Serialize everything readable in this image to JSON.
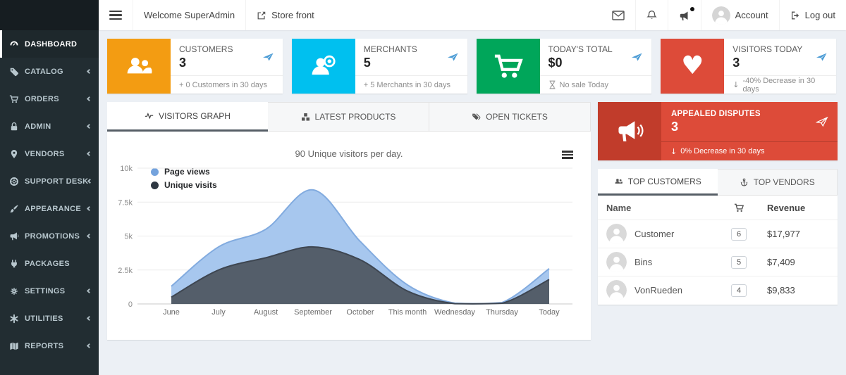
{
  "topbar": {
    "welcome": "Welcome SuperAdmin",
    "store_front": "Store front",
    "account_label": "Account",
    "logout_label": "Log out"
  },
  "sidebar": {
    "items": [
      {
        "label": "DASHBOARD",
        "icon": "gauge-icon",
        "active": true,
        "has_submenu": false
      },
      {
        "label": "CATALOG",
        "icon": "tag-icon",
        "active": false,
        "has_submenu": true
      },
      {
        "label": "ORDERS",
        "icon": "cart-icon",
        "active": false,
        "has_submenu": true
      },
      {
        "label": "ADMIN",
        "icon": "lock-icon",
        "active": false,
        "has_submenu": true
      },
      {
        "label": "VENDORS",
        "icon": "map-marker-icon",
        "active": false,
        "has_submenu": true
      },
      {
        "label": "SUPPORT DESK",
        "icon": "life-ring-icon",
        "active": false,
        "has_submenu": true
      },
      {
        "label": "APPEARANCE",
        "icon": "paintbrush-icon",
        "active": false,
        "has_submenu": true
      },
      {
        "label": "PROMOTIONS",
        "icon": "bullhorn-icon",
        "active": false,
        "has_submenu": true
      },
      {
        "label": "PACKAGES",
        "icon": "plug-icon",
        "active": false,
        "has_submenu": false
      },
      {
        "label": "SETTINGS",
        "icon": "gear-icon",
        "active": false,
        "has_submenu": true
      },
      {
        "label": "UTILITIES",
        "icon": "asterisk-icon",
        "active": false,
        "has_submenu": true
      },
      {
        "label": "REPORTS",
        "icon": "map-icon",
        "active": false,
        "has_submenu": true
      }
    ]
  },
  "stat_cards": [
    {
      "label": "CUSTOMERS",
      "value": "3",
      "footer": "+ 0 Customers in 30 days",
      "color": "#f39c12",
      "icon": "users-icon"
    },
    {
      "label": "MERCHANTS",
      "value": "5",
      "footer": "+ 5 Merchants in 30 days",
      "color": "#00c0ef",
      "icon": "merchant-users-icon"
    },
    {
      "label": "TODAY'S TOTAL",
      "value": "$0",
      "footer": "No sale Today",
      "color": "#00a65a",
      "icon": "shopping-cart-icon",
      "footer_icon": "hourglass-icon"
    },
    {
      "label": "VISITORS TODAY",
      "value": "3",
      "footer": "-40% Decrease in 30 days",
      "color": "#dd4b39",
      "icon": "heart-icon",
      "footer_icon": "down-arrow-icon",
      "down_arrow": "↓"
    }
  ],
  "main_tabs": [
    {
      "label": "VISITORS GRAPH",
      "icon": "pulse-icon",
      "active": true
    },
    {
      "label": "LATEST PRODUCTS",
      "icon": "cubes-icon",
      "active": false
    },
    {
      "label": "OPEN TICKETS",
      "icon": "tags-icon",
      "active": false
    }
  ],
  "chart_data": {
    "type": "area",
    "title": "90 Unique visitors per day.",
    "categories": [
      "June",
      "July",
      "August",
      "September",
      "October",
      "This month",
      "Wednesday",
      "Thursday",
      "Today"
    ],
    "series": [
      {
        "name": "Page views",
        "values": [
          1300,
          4200,
          5500,
          8400,
          4600,
          1400,
          60,
          100,
          2600
        ],
        "fill": "#a7c7ee",
        "stroke": "#82abdf",
        "dot": "#74a3dd"
      },
      {
        "name": "Unique visits",
        "values": [
          500,
          2500,
          3400,
          4200,
          3250,
          950,
          20,
          50,
          1800
        ],
        "fill": "#545e6a",
        "stroke": "#3e4651",
        "dot": "#2e3742"
      }
    ],
    "y_ticks": [
      "0",
      "2.5k",
      "5k",
      "7.5k",
      "10k"
    ],
    "y_tick_values": [
      0,
      2500,
      5000,
      7500,
      10000
    ],
    "ylim": [
      0,
      10000
    ],
    "grid": true,
    "legend_position": "top-left"
  },
  "disputes_card": {
    "label": "APPEALED DISPUTES",
    "value": "3",
    "footer": "0% Decrease in 30 days",
    "down_arrow": "↓",
    "color": "#dd4b39",
    "icon_box_color": "#c13c2b"
  },
  "right_tabs": [
    {
      "label": "TOP CUSTOMERS",
      "icon": "users-icon",
      "active": true
    },
    {
      "label": "TOP VENDORS",
      "icon": "anchor-icon",
      "active": false
    }
  ],
  "customers_table": {
    "name_header": "Name",
    "orders_header_icon": "cart-icon",
    "revenue_header": "Revenue",
    "rows": [
      {
        "name": "Customer",
        "orders": "6",
        "revenue": "$17,977"
      },
      {
        "name": "Bins",
        "orders": "5",
        "revenue": "$7,409"
      },
      {
        "name": "VonRueden",
        "orders": "4",
        "revenue": "$9,833"
      }
    ]
  },
  "icons": {
    "topbar": [
      "menu-icon",
      "external-link-icon",
      "envelope-icon",
      "bell-icon",
      "megaphone-icon",
      "notification-dot",
      "avatar",
      "logout-icon"
    ],
    "cards": [
      "users-icon",
      "merchant-users-icon",
      "shopping-cart-icon",
      "heart-icon",
      "send-arrow-icon",
      "hourglass-icon",
      "down-arrow-icon"
    ],
    "chart": [
      "menu-bars-icon"
    ],
    "disputes": [
      "megaphone-icon",
      "paper-plane-icon"
    ]
  }
}
